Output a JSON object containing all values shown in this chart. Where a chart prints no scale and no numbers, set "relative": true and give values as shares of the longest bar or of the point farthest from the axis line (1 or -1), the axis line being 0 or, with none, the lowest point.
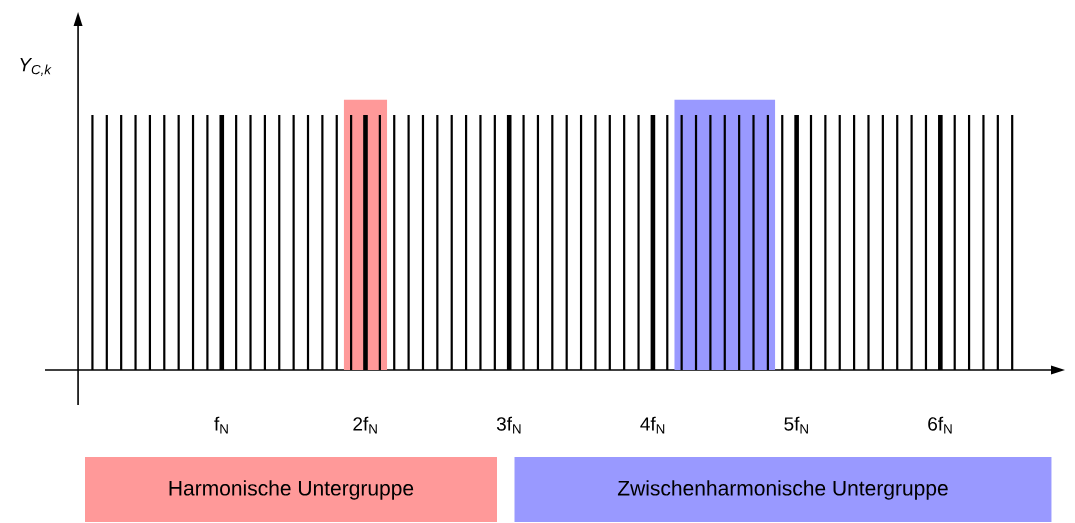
{
  "chart_data": {
    "type": "bar",
    "relative": true,
    "ylabel": "Y$_{C,k}$",
    "xlim": [
      -0.23,
      6.77
    ],
    "xticks": [
      {
        "value": 1,
        "label": "f$_{N}$"
      },
      {
        "value": 2,
        "label": "2f$_{N}$"
      },
      {
        "value": 3,
        "label": "3f$_{N}$"
      },
      {
        "value": 4,
        "label": "4f$_{N}$"
      },
      {
        "value": 5,
        "label": "5f$_{N}$"
      },
      {
        "value": 6,
        "label": "6f$_{N}$"
      }
    ],
    "series": [
      {
        "color": "#000000",
        "x": [
          0.1,
          0.2,
          0.3,
          0.4,
          0.5,
          0.6,
          0.7,
          0.8,
          0.9,
          1.1,
          1.2,
          1.3,
          1.4,
          1.5,
          1.6,
          1.7,
          1.8,
          1.9,
          2.1,
          2.2,
          2.3,
          2.4,
          2.5,
          2.6,
          2.7,
          2.8,
          2.9,
          3.1,
          3.2,
          3.3,
          3.4,
          3.5,
          3.6,
          3.7,
          3.8,
          3.9,
          4.1,
          4.2,
          4.3,
          4.4,
          4.5,
          4.6,
          4.7,
          4.8,
          4.9,
          5.1,
          5.2,
          5.3,
          5.4,
          5.5,
          5.6,
          5.7,
          5.8,
          5.9,
          6.1,
          6.2,
          6.3,
          6.4,
          6.5
        ],
        "values": [
          1,
          1,
          1,
          1,
          1,
          1,
          1,
          1,
          1,
          1,
          1,
          1,
          1,
          1,
          1,
          1,
          1,
          1,
          1,
          1,
          1,
          1,
          1,
          1,
          1,
          1,
          1,
          1,
          1,
          1,
          1,
          1,
          1,
          1,
          1,
          1,
          1,
          1,
          1,
          1,
          1,
          1,
          1,
          1,
          1,
          1,
          1,
          1,
          1,
          1,
          1,
          1,
          1,
          1,
          1,
          1,
          1,
          1,
          1
        ]
      },
      {
        "color": "#000000",
        "x": [
          1,
          2,
          3,
          4,
          5,
          6
        ],
        "values": [
          1,
          1,
          1,
          1,
          1,
          1
        ]
      }
    ],
    "annotations": [
      "Harmonische Untergruppe",
      "Zwischenharmonische Untergruppe"
    ],
    "bands": [
      {
        "axis": "x",
        "from": 1.85,
        "to": 2.15,
        "color": "#ff9999"
      },
      {
        "axis": "x",
        "from": 4.15,
        "to": 4.85,
        "color": "#9999ff"
      }
    ]
  }
}
